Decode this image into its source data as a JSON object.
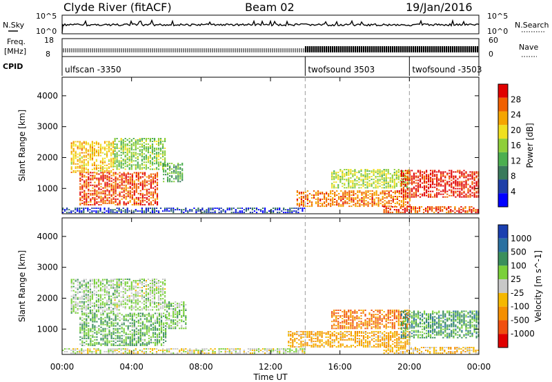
{
  "header": {
    "station": "Clyde River (fitACF)",
    "beam": "Beam 02",
    "date": "19/Jan/2016"
  },
  "top_panels": {
    "nsky_label": "N.Sky",
    "nsearch_label": "N.Search",
    "freq_label_1": "Freq.",
    "freq_label_2": "[MHz]",
    "nave_label": "Nave",
    "cpid_label": "CPID",
    "noise_ticks_left": [
      "10^5",
      "10^0"
    ],
    "noise_ticks_right": [
      "10^5",
      "10^0"
    ],
    "freq_ticks": [
      "18",
      "8"
    ],
    "nave_ticks": [
      "60",
      "0"
    ],
    "cpid_segments": [
      {
        "label": "ulfscan -3350",
        "start_hour": 0
      },
      {
        "label": "twofsound 3503",
        "start_hour": 14
      },
      {
        "label": "twofsound -3503",
        "start_hour": 20
      }
    ]
  },
  "xaxis": {
    "label": "Time UT",
    "ticks": [
      "00:00",
      "04:00",
      "08:00",
      "12:00",
      "16:00",
      "20:00",
      "00:00"
    ]
  },
  "chart_data": [
    {
      "type": "heatmap",
      "title": "Power",
      "ylabel": "Slant Range [km]",
      "yticks": [
        1000,
        2000,
        3000,
        4000
      ],
      "ylim": [
        180,
        4600
      ],
      "xlim_hours": [
        0,
        24
      ],
      "colorbar": {
        "label": "Power [dB]",
        "ticks": [
          "28",
          "24",
          "20",
          "16",
          "12",
          "8",
          "4"
        ],
        "range": [
          0,
          30
        ],
        "colors": [
          "#0000ff",
          "#1e3fa8",
          "#3a7a5c",
          "#4caf50",
          "#8fcf3a",
          "#f0e020",
          "#f5a500",
          "#f06000",
          "#e00000"
        ]
      },
      "regions": [
        {
          "t0": 0.5,
          "t1": 3.0,
          "r0": 1500,
          "r1": 2500,
          "value": 20
        },
        {
          "t0": 1.0,
          "t1": 5.5,
          "r0": 450,
          "r1": 1500,
          "value": 26
        },
        {
          "t0": 3.0,
          "t1": 6.0,
          "r0": 1600,
          "r1": 2600,
          "value": 14
        },
        {
          "t0": 5.8,
          "t1": 7.0,
          "r0": 1200,
          "r1": 1800,
          "value": 12
        },
        {
          "t0": 0.0,
          "t1": 14.0,
          "r0": 200,
          "r1": 350,
          "value": 5
        },
        {
          "t0": 13.5,
          "t1": 20.0,
          "r0": 400,
          "r1": 900,
          "value": 24
        },
        {
          "t0": 15.5,
          "t1": 20.0,
          "r0": 1000,
          "r1": 1600,
          "value": 16
        },
        {
          "t0": 19.5,
          "t1": 24.0,
          "r0": 700,
          "r1": 1600,
          "value": 28
        },
        {
          "t0": 18.5,
          "t1": 24.0,
          "r0": 200,
          "r1": 400,
          "value": 26
        }
      ]
    },
    {
      "type": "heatmap",
      "title": "Velocity",
      "ylabel": "Slant Range [km]",
      "yticks": [
        1000,
        2000,
        3000,
        4000
      ],
      "ylim": [
        180,
        4600
      ],
      "xlim_hours": [
        0,
        24
      ],
      "colorbar": {
        "label": "Velocity [m s^-1]",
        "ticks": [
          "1000",
          "500",
          "100",
          "25",
          "-25",
          "-100",
          "-500",
          "-1000"
        ],
        "range": [
          -1000,
          1000
        ],
        "colors": [
          "#e00000",
          "#f05010",
          "#f58f00",
          "#f5b800",
          "#c8c8c8",
          "#7ad03a",
          "#3a8f5c",
          "#2a70a0",
          "#1a3fb0"
        ]
      },
      "regions": [
        {
          "t0": 0.5,
          "t1": 3.0,
          "r0": 1500,
          "r1": 2600,
          "value": 150
        },
        {
          "t0": 1.0,
          "t1": 6.0,
          "r0": 450,
          "r1": 1500,
          "value": 300
        },
        {
          "t0": 3.0,
          "t1": 6.0,
          "r0": 1600,
          "r1": 2600,
          "value": 120
        },
        {
          "t0": 6.0,
          "t1": 7.2,
          "r0": 1000,
          "r1": 1900,
          "value": 200
        },
        {
          "t0": 0.0,
          "t1": 14.0,
          "r0": 200,
          "r1": 350,
          "value": 0
        },
        {
          "t0": 13.0,
          "t1": 20.0,
          "r0": 400,
          "r1": 900,
          "value": -300
        },
        {
          "t0": 15.5,
          "t1": 20.0,
          "r0": 1000,
          "r1": 1600,
          "value": -500
        },
        {
          "t0": 19.5,
          "t1": 24.0,
          "r0": 700,
          "r1": 1600,
          "value": 400
        },
        {
          "t0": 18.5,
          "t1": 24.0,
          "r0": 200,
          "r1": 400,
          "value": -200
        }
      ]
    }
  ]
}
